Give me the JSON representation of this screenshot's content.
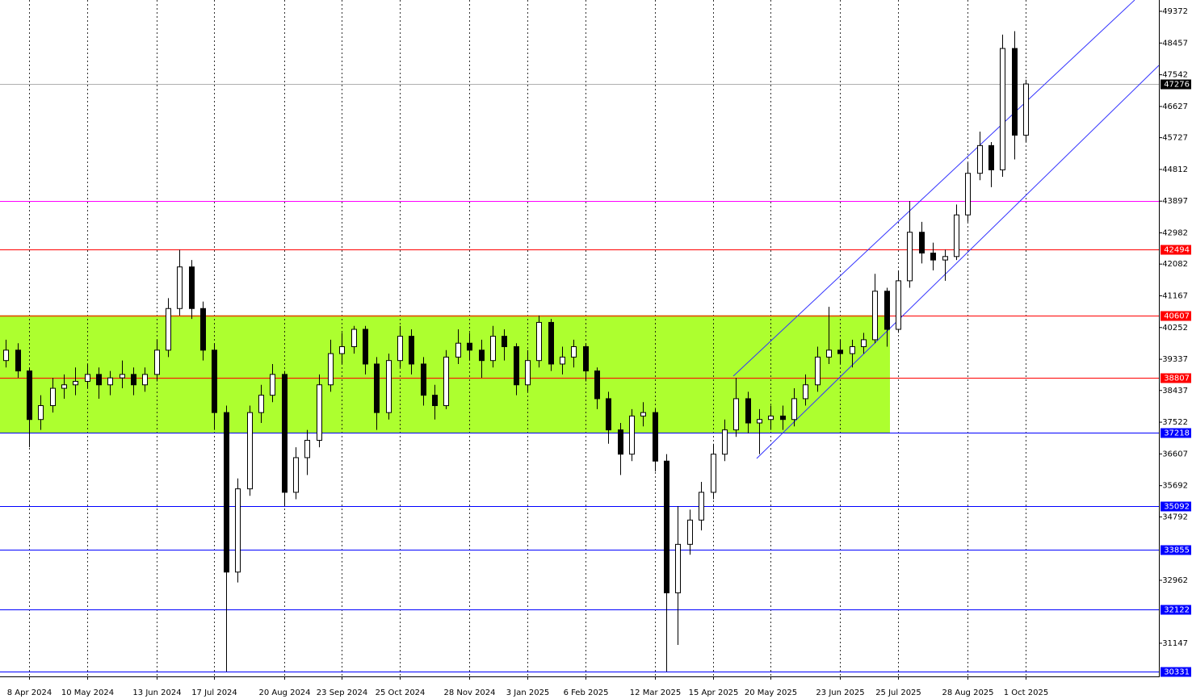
{
  "chart_data": {
    "type": "candlestick",
    "categories": [
      null,
      null,
      "8 Apr 2024",
      null,
      null,
      null,
      null,
      "10 May 2024",
      null,
      null,
      null,
      null,
      null,
      "13 Jun 2024",
      null,
      null,
      null,
      null,
      "17 Jul 2024",
      null,
      null,
      null,
      null,
      null,
      "20 Aug 2024",
      null,
      null,
      null,
      null,
      "23 Sep 2024",
      null,
      null,
      null,
      null,
      "25 Oct 2024",
      null,
      null,
      null,
      null,
      null,
      "28 Nov 2024",
      null,
      null,
      null,
      null,
      "3 Jan 2025",
      null,
      null,
      null,
      null,
      "6 Feb 2025",
      null,
      null,
      null,
      null,
      null,
      "12 Mar 2025",
      null,
      null,
      null,
      null,
      "15 Apr 2025",
      null,
      null,
      null,
      null,
      "20 May 2025",
      null,
      null,
      null,
      null,
      null,
      "23 Jun 2025",
      null,
      null,
      null,
      null,
      "25 Jul 2025",
      null,
      null,
      null,
      null,
      null,
      "28 Aug 2025",
      null,
      null,
      null,
      null,
      "1 Oct 2025"
    ],
    "open": [
      39300,
      39600,
      39000,
      37600,
      38000,
      38500,
      38600,
      38700,
      38900,
      38600,
      38800,
      38900,
      38600,
      38900,
      39600,
      40800,
      42000,
      40800,
      39600,
      37800,
      33200,
      35600,
      37800,
      38300,
      38900,
      35500,
      36500,
      37000,
      38600,
      39500,
      39700,
      40200,
      39200,
      37800,
      39300,
      40000,
      39200,
      38300,
      38000,
      39400,
      39800,
      39600,
      39300,
      40000,
      39700,
      38600,
      39300,
      40400,
      39200,
      39400,
      39700,
      39000,
      38200,
      37300,
      36600,
      37700,
      37800,
      36400,
      32600,
      34000,
      34700,
      35500,
      36600,
      37300,
      38200,
      37500,
      37600,
      37700,
      37600,
      38200,
      38600,
      39400,
      39600,
      39500,
      39700,
      39900,
      41300,
      40200,
      41600,
      43000,
      42400,
      42200,
      42300,
      43500,
      44700,
      45500,
      44800,
      48300,
      45800
    ],
    "high": [
      39900,
      39800,
      39100,
      38300,
      38800,
      38900,
      39100,
      39200,
      39100,
      39000,
      39300,
      39100,
      39100,
      39900,
      41100,
      42494,
      42200,
      41000,
      39800,
      38000,
      35900,
      38000,
      38600,
      39200,
      39000,
      36800,
      37300,
      38900,
      39900,
      40100,
      40300,
      40300,
      39400,
      39500,
      40300,
      40200,
      39400,
      38600,
      39600,
      40200,
      40100,
      39900,
      40300,
      40200,
      39800,
      39600,
      40600,
      40500,
      39700,
      39900,
      39800,
      39100,
      38400,
      37500,
      37900,
      38100,
      37900,
      36600,
      35100,
      35000,
      35800,
      36900,
      37600,
      38800,
      38400,
      37900,
      38000,
      38000,
      38500,
      38900,
      39700,
      40850,
      39900,
      39900,
      40100,
      41800,
      41400,
      41900,
      43900,
      43300,
      42700,
      42500,
      43800,
      45000,
      45900,
      45600,
      48700,
      48800,
      47400
    ],
    "low": [
      39100,
      38800,
      36800,
      37300,
      37800,
      38200,
      38300,
      38500,
      38200,
      38300,
      38500,
      38300,
      38400,
      38700,
      39400,
      40600,
      40500,
      39300,
      37300,
      30331,
      32900,
      35400,
      37500,
      38100,
      35100,
      35300,
      36000,
      36800,
      38400,
      39200,
      39500,
      38900,
      37300,
      37600,
      39100,
      38900,
      38000,
      37600,
      37900,
      39200,
      39300,
      38800,
      39100,
      39300,
      38300,
      38400,
      39100,
      39000,
      38900,
      39100,
      38700,
      37900,
      36900,
      36000,
      36400,
      37400,
      36100,
      30331,
      31100,
      33700,
      34400,
      35300,
      36400,
      37100,
      37200,
      36600,
      37300,
      37300,
      37400,
      38000,
      38400,
      39200,
      39200,
      39100,
      39500,
      39800,
      39700,
      40100,
      41400,
      42100,
      41900,
      41600,
      42200,
      43300,
      44500,
      44300,
      44600,
      45100,
      45600
    ],
    "close": [
      39600,
      39000,
      37600,
      38000,
      38500,
      38600,
      38700,
      38900,
      38600,
      38800,
      38900,
      38600,
      38900,
      39600,
      40800,
      42000,
      40800,
      39600,
      37800,
      33200,
      35600,
      37800,
      38300,
      38900,
      35500,
      36500,
      37000,
      38600,
      39500,
      39700,
      40200,
      39200,
      37800,
      39300,
      40000,
      39200,
      38300,
      38000,
      39400,
      39800,
      39600,
      39300,
      40000,
      39700,
      38600,
      39300,
      40400,
      39200,
      39400,
      39700,
      39000,
      38200,
      37300,
      36600,
      37700,
      37800,
      36400,
      32600,
      34000,
      34700,
      35500,
      36600,
      37300,
      38200,
      37500,
      37600,
      37700,
      37600,
      38200,
      38600,
      39400,
      39600,
      39500,
      39700,
      39900,
      41300,
      40200,
      41600,
      43000,
      42400,
      42200,
      42300,
      43500,
      44700,
      45500,
      44800,
      48300,
      45800,
      47276
    ],
    "ylim": [
      30191,
      49698
    ],
    "yticks": [
      49372,
      48457,
      47542,
      46627,
      45727,
      44812,
      43897,
      42982,
      42082,
      41167,
      40252,
      39337,
      38437,
      37522,
      36607,
      35692,
      34792,
      32962,
      31147
    ],
    "grid": true,
    "last_price_line": true,
    "bull_color": "#ffffff",
    "bear_color": "#000000",
    "zone": {
      "low": 37218,
      "high": 40607,
      "color": "#adff2f"
    },
    "levels": [
      {
        "value": 43897,
        "color": "#ff00ff",
        "tagged": false
      },
      {
        "value": 42494,
        "color": "#ff0000",
        "tagged": true
      },
      {
        "value": 40607,
        "color": "#ff0000",
        "tagged": true
      },
      {
        "value": 38807,
        "color": "#ff0000",
        "tagged": true
      },
      {
        "value": 37218,
        "color": "#0000ff",
        "tagged": true
      },
      {
        "value": 35092,
        "color": "#0000ff",
        "tagged": true
      },
      {
        "value": 33855,
        "color": "#0000ff",
        "tagged": true
      },
      {
        "value": 32122,
        "color": "#0000ff",
        "tagged": true
      },
      {
        "value": 30331,
        "color": "#0000ff",
        "tagged": true
      }
    ]
  }
}
